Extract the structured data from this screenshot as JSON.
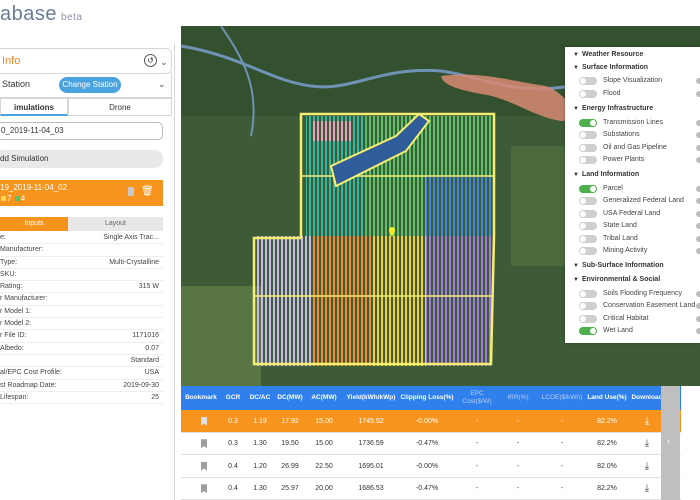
{
  "brand": {
    "name": "abase",
    "tag": "beta"
  },
  "panel": {
    "title": "Info",
    "station_label": "Station",
    "change_station": "Change Station",
    "tabs": [
      "imulations",
      "Drone"
    ],
    "simulation_value": "0_2019-11-04_03",
    "add_simulation": "dd Simulation",
    "card": {
      "name": "19_2019-11-04_02",
      "metric_a": "7",
      "metric_b": "4"
    },
    "sub_tabs": [
      "Inputs",
      "Layout"
    ],
    "properties": [
      {
        "k": "e:",
        "v": "Single Axis Trac..."
      },
      {
        "k": "Manufacturer:",
        "v": ""
      },
      {
        "k": "Type:",
        "v": "Multi-Crystalline"
      },
      {
        "k": "SKU:",
        "v": ""
      },
      {
        "k": "Rating:",
        "v": "315 W"
      },
      {
        "k": "r Manufacturer:",
        "v": ""
      },
      {
        "k": "r Model 1:",
        "v": ""
      },
      {
        "k": "r Model 2:",
        "v": ""
      },
      {
        "k": "r File ID:",
        "v": "1171016"
      },
      {
        "k": "Albedo:",
        "v": "0.07"
      },
      {
        "k": "",
        "v": "Standard"
      },
      {
        "k": "al/EPC Cost Profile:",
        "v": "USA"
      },
      {
        "k": "st Roadmap Date:",
        "v": "2019-09-30"
      },
      {
        "k": "Lifespan:",
        "v": "25"
      }
    ]
  },
  "layers": {
    "groups": [
      {
        "title": "Weather Resource",
        "items": []
      },
      {
        "title": "Surface Information",
        "items": [
          {
            "name": "Slope Visualization",
            "on": false
          },
          {
            "name": "Flood",
            "on": false
          }
        ]
      },
      {
        "title": "Energy Infrastructure",
        "items": [
          {
            "name": "Transmission Lines",
            "on": true
          },
          {
            "name": "Substations",
            "on": false
          },
          {
            "name": "Oil and Gas Pipeline",
            "on": false
          },
          {
            "name": "Power Plants",
            "on": false
          }
        ]
      },
      {
        "title": "Land Information",
        "items": [
          {
            "name": "Parcel",
            "on": true
          },
          {
            "name": "Generalized Federal Land",
            "on": false
          },
          {
            "name": "USA Federal Land",
            "on": false
          },
          {
            "name": "State Land",
            "on": false
          },
          {
            "name": "Tribal Land",
            "on": false
          },
          {
            "name": "Mining Activity",
            "on": false
          }
        ]
      },
      {
        "title": "Sub-Surface Information",
        "items": []
      },
      {
        "title": "Environmental & Social",
        "items": [
          {
            "name": "Soils Flooding Frequency",
            "on": false
          },
          {
            "name": "Conservation Easement Land",
            "on": false
          },
          {
            "name": "Critical Habitat",
            "on": false
          },
          {
            "name": "Wet Land",
            "on": true
          }
        ]
      }
    ]
  },
  "table": {
    "headers": [
      "Bookmark",
      "GCR",
      "DC/AC",
      "DC(MW)",
      "AC(MW)",
      "Yield(kWh/kWp)",
      "Clipping Loss(%)",
      "EPC Cost($/W)",
      "IRR(%)",
      "LCOE($/kWh)",
      "Land Use(%)",
      "Download"
    ],
    "rows": [
      [
        "",
        "0.3",
        "1.19",
        "17.92",
        "15.00",
        "1745.52",
        "-0.00%",
        "-",
        "-",
        "-",
        "82.2%",
        ""
      ],
      [
        "",
        "0.3",
        "1.30",
        "19.50",
        "15.00",
        "1736.59",
        "-0.47%",
        "-",
        "-",
        "-",
        "82.2%",
        ""
      ],
      [
        "",
        "0.4",
        "1.20",
        "26.99",
        "22.50",
        "1695.01",
        "-0.00%",
        "-",
        "-",
        "-",
        "82.0%",
        ""
      ],
      [
        "",
        "0.4",
        "1.30",
        "25.97",
        "20.00",
        "1686.53",
        "-0.47%",
        "-",
        "-",
        "-",
        "82.2%",
        ""
      ]
    ]
  },
  "icons": {
    "share": "share-icon",
    "bookmark": "bookmark-icon",
    "trash": "trash-icon",
    "download": "download-icon",
    "collapse": "chevron-left-icon",
    "pin": "map-pin-icon"
  },
  "colors": {
    "accent": "#f7941d",
    "primary": "#2f80ed",
    "toggle_on": "#4caf50"
  }
}
